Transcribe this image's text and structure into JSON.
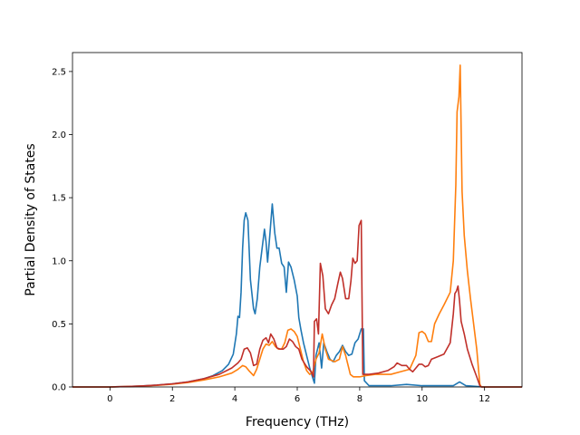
{
  "chart_data": {
    "type": "line",
    "xlabel": "Frequency (THz)",
    "ylabel": "Partial Density of States",
    "xlim": [
      -1.2,
      13.2
    ],
    "ylim": [
      0,
      2.65
    ],
    "xticks": [
      "0",
      "2",
      "4",
      "6",
      "8",
      "10",
      "12"
    ],
    "xtick_values": [
      0,
      2,
      4,
      6,
      8,
      10,
      12
    ],
    "yticks": [
      "0.0",
      "0.5",
      "1.0",
      "1.5",
      "2.0",
      "2.5"
    ],
    "ytick_values": [
      0,
      0.5,
      1.0,
      1.5,
      2.0,
      2.5
    ],
    "grid": false,
    "series": [
      {
        "color": "#1f77b4",
        "points": [
          [
            -1.2,
            0
          ],
          [
            0,
            0
          ],
          [
            0.5,
            0.003
          ],
          [
            1,
            0.008
          ],
          [
            1.5,
            0.015
          ],
          [
            2,
            0.025
          ],
          [
            2.5,
            0.04
          ],
          [
            3,
            0.065
          ],
          [
            3.3,
            0.09
          ],
          [
            3.6,
            0.13
          ],
          [
            3.8,
            0.18
          ],
          [
            3.95,
            0.26
          ],
          [
            4.05,
            0.42
          ],
          [
            4.1,
            0.56
          ],
          [
            4.15,
            0.55
          ],
          [
            4.2,
            0.75
          ],
          [
            4.25,
            1.1
          ],
          [
            4.3,
            1.32
          ],
          [
            4.35,
            1.38
          ],
          [
            4.42,
            1.32
          ],
          [
            4.5,
            0.85
          ],
          [
            4.6,
            0.62
          ],
          [
            4.65,
            0.58
          ],
          [
            4.72,
            0.7
          ],
          [
            4.8,
            0.95
          ],
          [
            4.9,
            1.15
          ],
          [
            4.95,
            1.25
          ],
          [
            5.0,
            1.15
          ],
          [
            5.05,
            0.99
          ],
          [
            5.12,
            1.2
          ],
          [
            5.2,
            1.45
          ],
          [
            5.28,
            1.22
          ],
          [
            5.35,
            1.1
          ],
          [
            5.42,
            1.1
          ],
          [
            5.5,
            0.98
          ],
          [
            5.58,
            0.95
          ],
          [
            5.65,
            0.75
          ],
          [
            5.72,
            0.99
          ],
          [
            5.8,
            0.95
          ],
          [
            5.9,
            0.85
          ],
          [
            6.0,
            0.72
          ],
          [
            6.05,
            0.55
          ],
          [
            6.12,
            0.45
          ],
          [
            6.2,
            0.35
          ],
          [
            6.3,
            0.25
          ],
          [
            6.4,
            0.15
          ],
          [
            6.5,
            0.07
          ],
          [
            6.55,
            0.03
          ],
          [
            6.6,
            0.25
          ],
          [
            6.7,
            0.35
          ],
          [
            6.78,
            0.15
          ],
          [
            6.85,
            0.35
          ],
          [
            6.95,
            0.28
          ],
          [
            7.05,
            0.22
          ],
          [
            7.15,
            0.2
          ],
          [
            7.25,
            0.25
          ],
          [
            7.35,
            0.28
          ],
          [
            7.45,
            0.33
          ],
          [
            7.55,
            0.28
          ],
          [
            7.65,
            0.25
          ],
          [
            7.75,
            0.26
          ],
          [
            7.85,
            0.35
          ],
          [
            7.95,
            0.38
          ],
          [
            8.05,
            0.46
          ],
          [
            8.12,
            0.46
          ],
          [
            8.15,
            0.05
          ],
          [
            8.3,
            0.01
          ],
          [
            9,
            0.01
          ],
          [
            9.5,
            0.02
          ],
          [
            10,
            0.01
          ],
          [
            11,
            0.01
          ],
          [
            11.2,
            0.04
          ],
          [
            11.4,
            0.01
          ],
          [
            12,
            0
          ],
          [
            13.2,
            0
          ]
        ]
      },
      {
        "color": "#ff7f0e",
        "points": [
          [
            -1.2,
            0
          ],
          [
            0,
            0
          ],
          [
            0.5,
            0.003
          ],
          [
            1,
            0.007
          ],
          [
            1.5,
            0.013
          ],
          [
            2,
            0.022
          ],
          [
            2.5,
            0.035
          ],
          [
            3,
            0.055
          ],
          [
            3.5,
            0.08
          ],
          [
            3.9,
            0.11
          ],
          [
            4.1,
            0.14
          ],
          [
            4.25,
            0.17
          ],
          [
            4.35,
            0.16
          ],
          [
            4.45,
            0.13
          ],
          [
            4.6,
            0.09
          ],
          [
            4.7,
            0.14
          ],
          [
            4.8,
            0.22
          ],
          [
            4.9,
            0.3
          ],
          [
            5.0,
            0.34
          ],
          [
            5.1,
            0.33
          ],
          [
            5.2,
            0.36
          ],
          [
            5.3,
            0.32
          ],
          [
            5.4,
            0.3
          ],
          [
            5.5,
            0.3
          ],
          [
            5.6,
            0.35
          ],
          [
            5.7,
            0.45
          ],
          [
            5.8,
            0.46
          ],
          [
            5.9,
            0.44
          ],
          [
            6.0,
            0.4
          ],
          [
            6.1,
            0.3
          ],
          [
            6.2,
            0.2
          ],
          [
            6.3,
            0.13
          ],
          [
            6.4,
            0.1
          ],
          [
            6.5,
            0.12
          ],
          [
            6.6,
            0.22
          ],
          [
            6.7,
            0.27
          ],
          [
            6.8,
            0.42
          ],
          [
            6.9,
            0.3
          ],
          [
            7.0,
            0.22
          ],
          [
            7.2,
            0.2
          ],
          [
            7.35,
            0.22
          ],
          [
            7.45,
            0.32
          ],
          [
            7.55,
            0.25
          ],
          [
            7.7,
            0.1
          ],
          [
            7.8,
            0.08
          ],
          [
            8.0,
            0.08
          ],
          [
            8.2,
            0.09
          ],
          [
            8.5,
            0.1
          ],
          [
            9.0,
            0.1
          ],
          [
            9.3,
            0.12
          ],
          [
            9.6,
            0.14
          ],
          [
            9.8,
            0.25
          ],
          [
            9.9,
            0.43
          ],
          [
            10.0,
            0.44
          ],
          [
            10.1,
            0.42
          ],
          [
            10.2,
            0.36
          ],
          [
            10.3,
            0.36
          ],
          [
            10.4,
            0.5
          ],
          [
            10.55,
            0.58
          ],
          [
            10.7,
            0.65
          ],
          [
            10.9,
            0.75
          ],
          [
            11.0,
            1.0
          ],
          [
            11.08,
            1.6
          ],
          [
            11.12,
            2.18
          ],
          [
            11.18,
            2.3
          ],
          [
            11.22,
            2.55
          ],
          [
            11.28,
            1.55
          ],
          [
            11.35,
            1.2
          ],
          [
            11.45,
            0.92
          ],
          [
            11.55,
            0.7
          ],
          [
            11.65,
            0.5
          ],
          [
            11.75,
            0.3
          ],
          [
            11.85,
            0.02
          ],
          [
            11.9,
            0
          ],
          [
            13.2,
            0
          ]
        ]
      },
      {
        "color": "#c0302a",
        "points": [
          [
            -1.2,
            0
          ],
          [
            0,
            0
          ],
          [
            0.5,
            0.003
          ],
          [
            1,
            0.008
          ],
          [
            1.5,
            0.015
          ],
          [
            2,
            0.025
          ],
          [
            2.5,
            0.04
          ],
          [
            3,
            0.065
          ],
          [
            3.5,
            0.1
          ],
          [
            3.9,
            0.15
          ],
          [
            4.1,
            0.19
          ],
          [
            4.2,
            0.22
          ],
          [
            4.3,
            0.3
          ],
          [
            4.4,
            0.31
          ],
          [
            4.5,
            0.27
          ],
          [
            4.6,
            0.17
          ],
          [
            4.7,
            0.18
          ],
          [
            4.8,
            0.3
          ],
          [
            4.9,
            0.37
          ],
          [
            5.0,
            0.39
          ],
          [
            5.08,
            0.35
          ],
          [
            5.15,
            0.42
          ],
          [
            5.25,
            0.38
          ],
          [
            5.35,
            0.31
          ],
          [
            5.45,
            0.3
          ],
          [
            5.55,
            0.3
          ],
          [
            5.65,
            0.32
          ],
          [
            5.75,
            0.38
          ],
          [
            5.85,
            0.36
          ],
          [
            5.95,
            0.32
          ],
          [
            6.05,
            0.3
          ],
          [
            6.15,
            0.22
          ],
          [
            6.3,
            0.16
          ],
          [
            6.45,
            0.12
          ],
          [
            6.52,
            0.08
          ],
          [
            6.55,
            0.52
          ],
          [
            6.62,
            0.54
          ],
          [
            6.68,
            0.42
          ],
          [
            6.74,
            0.98
          ],
          [
            6.82,
            0.88
          ],
          [
            6.9,
            0.62
          ],
          [
            7.0,
            0.58
          ],
          [
            7.1,
            0.65
          ],
          [
            7.2,
            0.7
          ],
          [
            7.3,
            0.82
          ],
          [
            7.38,
            0.91
          ],
          [
            7.45,
            0.86
          ],
          [
            7.55,
            0.7
          ],
          [
            7.65,
            0.7
          ],
          [
            7.72,
            0.84
          ],
          [
            7.78,
            1.02
          ],
          [
            7.85,
            0.98
          ],
          [
            7.92,
            1.0
          ],
          [
            7.98,
            1.28
          ],
          [
            8.05,
            1.32
          ],
          [
            8.1,
            0.1
          ],
          [
            8.3,
            0.1
          ],
          [
            8.6,
            0.11
          ],
          [
            8.9,
            0.13
          ],
          [
            9.1,
            0.16
          ],
          [
            9.2,
            0.19
          ],
          [
            9.35,
            0.17
          ],
          [
            9.5,
            0.17
          ],
          [
            9.6,
            0.14
          ],
          [
            9.7,
            0.12
          ],
          [
            9.8,
            0.15
          ],
          [
            9.9,
            0.18
          ],
          [
            10.0,
            0.18
          ],
          [
            10.1,
            0.16
          ],
          [
            10.2,
            0.17
          ],
          [
            10.3,
            0.22
          ],
          [
            10.5,
            0.24
          ],
          [
            10.7,
            0.26
          ],
          [
            10.9,
            0.35
          ],
          [
            11.0,
            0.58
          ],
          [
            11.05,
            0.74
          ],
          [
            11.1,
            0.76
          ],
          [
            11.15,
            0.8
          ],
          [
            11.2,
            0.68
          ],
          [
            11.25,
            0.52
          ],
          [
            11.35,
            0.42
          ],
          [
            11.45,
            0.3
          ],
          [
            11.6,
            0.18
          ],
          [
            11.75,
            0.08
          ],
          [
            11.85,
            0.01
          ],
          [
            11.9,
            0
          ],
          [
            13.2,
            0
          ]
        ]
      }
    ]
  }
}
